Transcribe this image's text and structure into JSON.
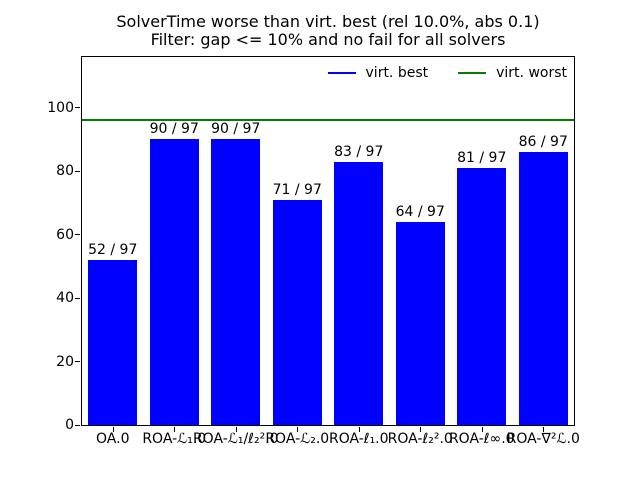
{
  "title": {
    "line1": "SolverTime worse than virt. best (rel 10.0%, abs 0.1)",
    "line2": "Filter: gap <= 10% and no fail for all solvers"
  },
  "chart_data": {
    "type": "bar",
    "title": "SolverTime worse than virt. best (rel 10.0%, abs 0.1)",
    "subtitle": "Filter: gap <= 10% and no fail for all solvers",
    "categories": [
      "OA.0",
      "ROA-ℒ₁.0",
      "ROA-ℒ₁/ℓ₂².0",
      "ROA-ℒ₂.0",
      "ROA-ℓ₁.0",
      "ROA-ℓ₂².0",
      "ROA-ℓ∞.0",
      "ROA-∇²ℒ.0"
    ],
    "values": [
      52,
      90,
      90,
      71,
      83,
      64,
      81,
      86
    ],
    "bar_labels": [
      "52 / 97",
      "90 / 97",
      "90 / 97",
      "71 / 97",
      "83 / 97",
      "64 / 97",
      "81 / 97",
      "86 / 97"
    ],
    "total_instances": 97,
    "bar_color": "#0000ff",
    "xlabel": "",
    "ylabel": "",
    "yticks": [
      0,
      20,
      40,
      60,
      80,
      100
    ],
    "ylim": [
      0,
      116
    ],
    "grid": false,
    "legend_position": "upper right",
    "legend": [
      {
        "label": "virt. best",
        "color": "#0000ff"
      },
      {
        "label": "virt. worst",
        "color": "#008000"
      }
    ],
    "reference_lines": [
      {
        "label": "virt. worst",
        "value": 96,
        "color": "#008000"
      }
    ]
  }
}
